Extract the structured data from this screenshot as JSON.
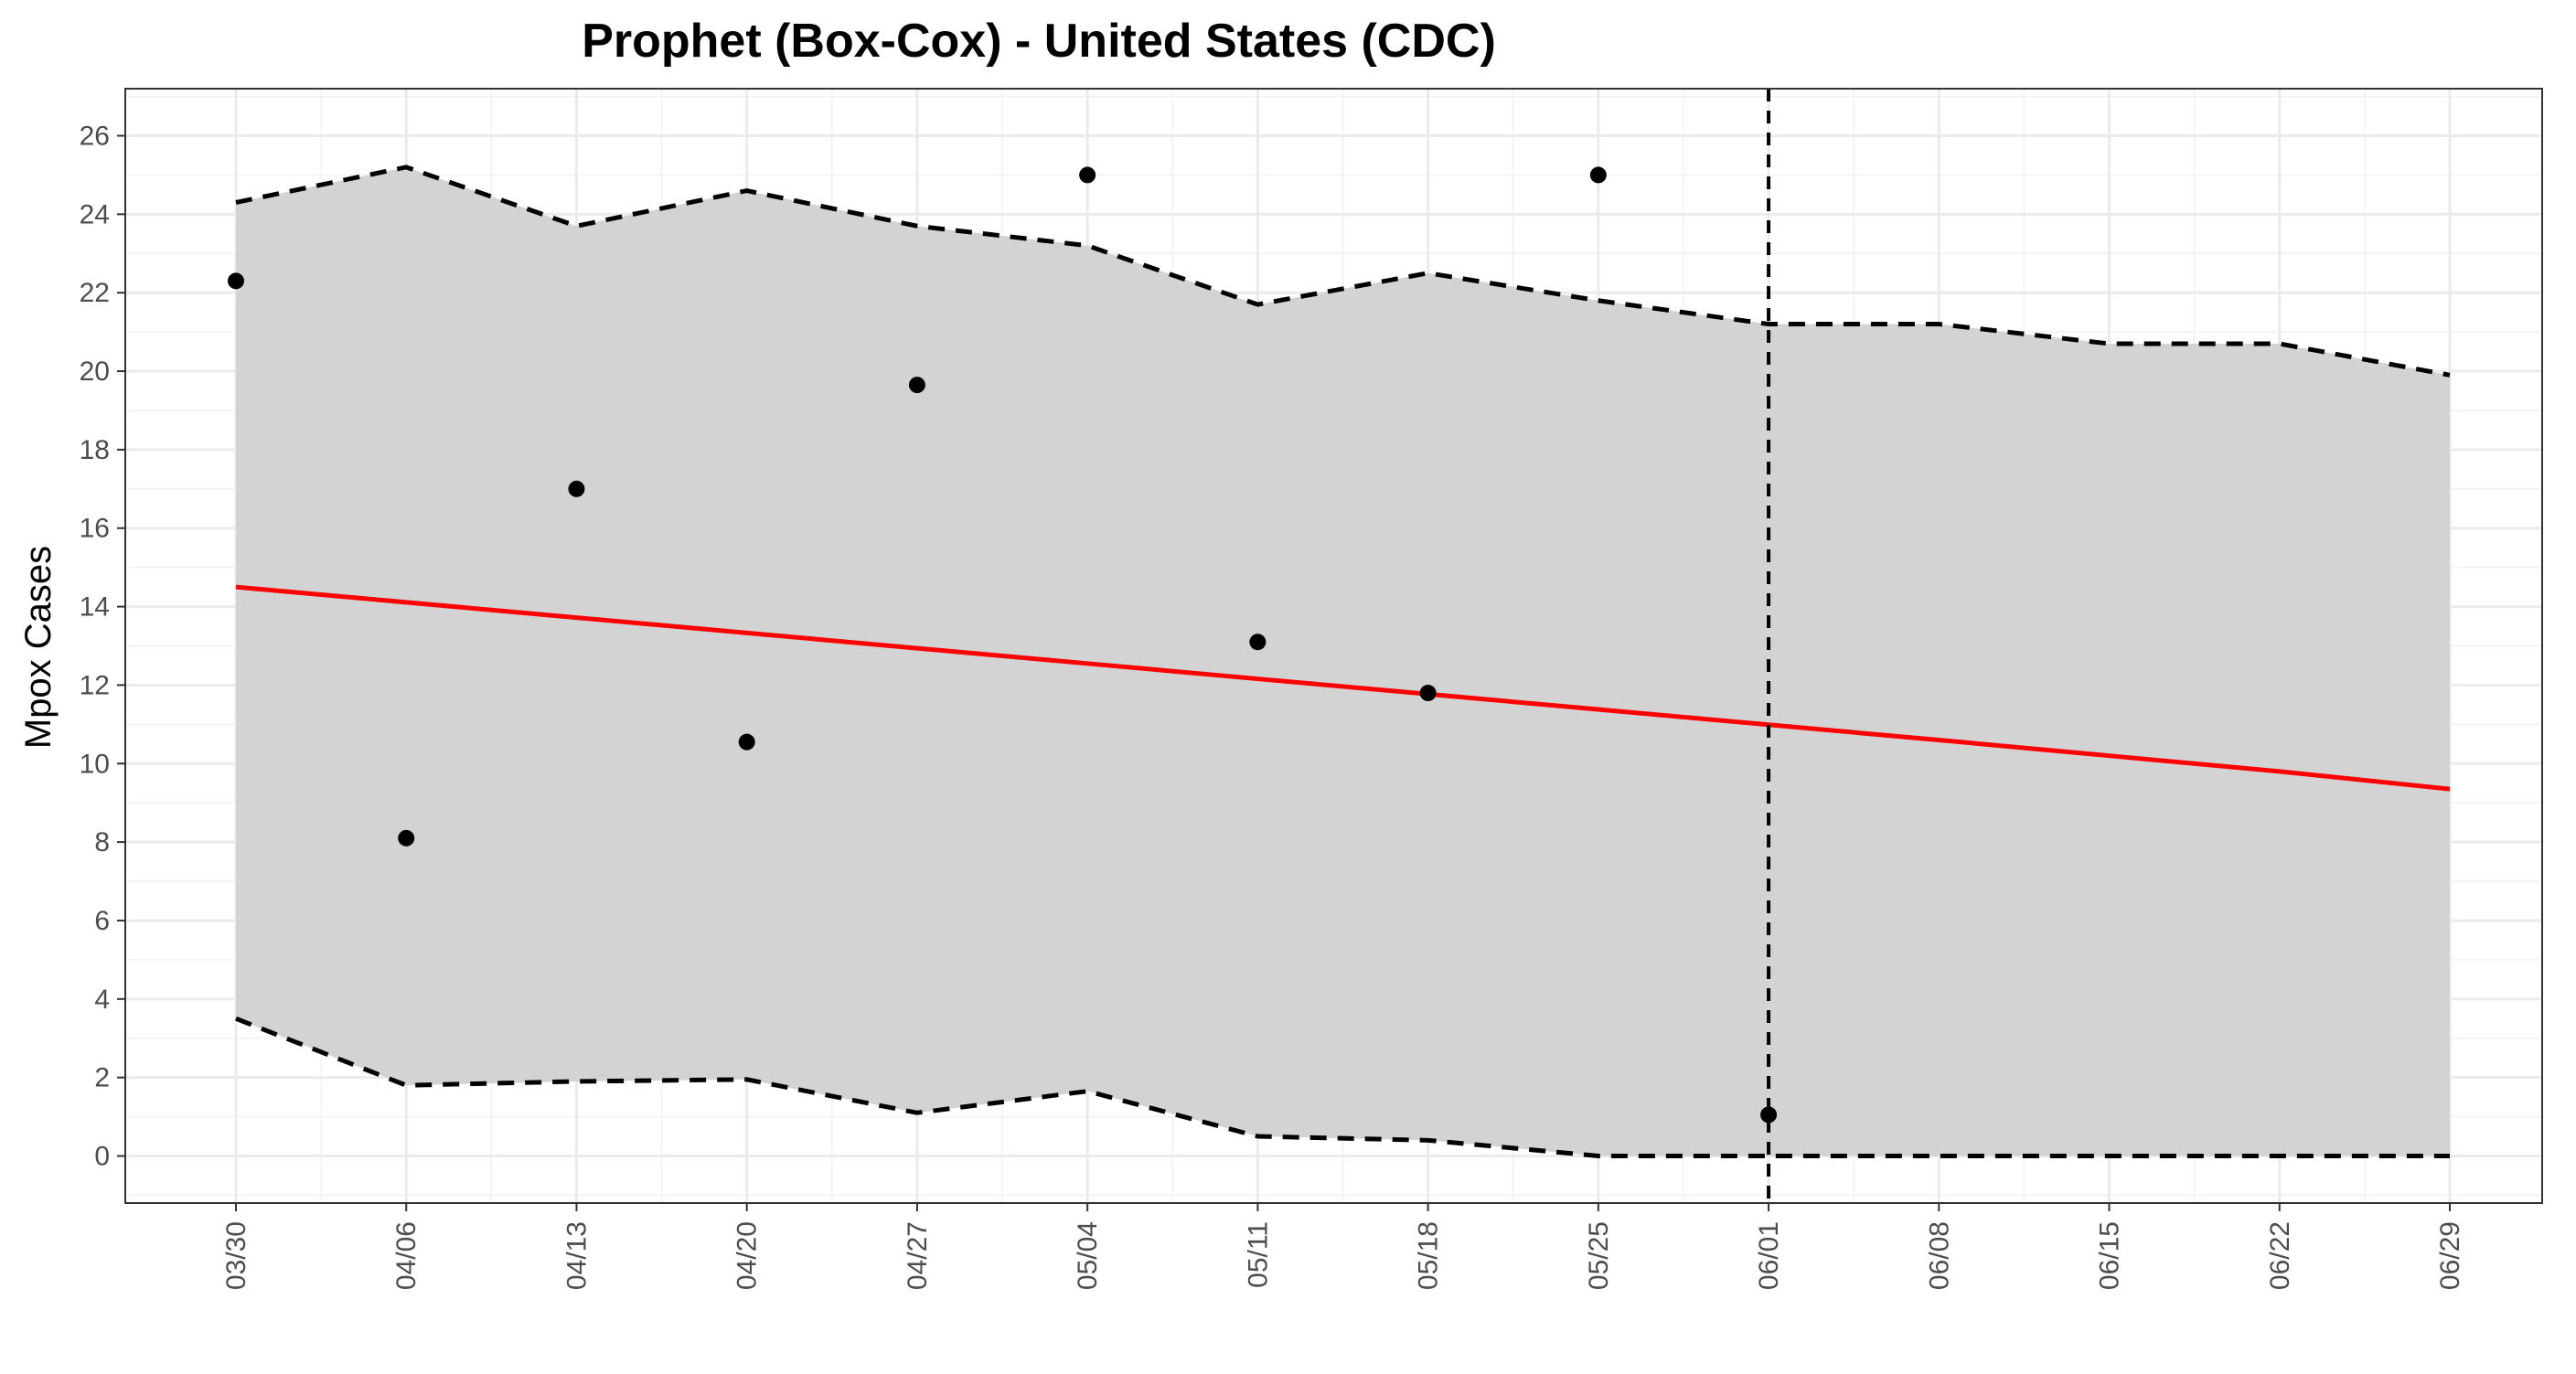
{
  "chart_data": {
    "type": "line",
    "title": "Prophet (Box-Cox) - United States (CDC)",
    "xlabel": "",
    "ylabel": "Mpox Cases",
    "x": [
      "03/30",
      "04/06",
      "04/13",
      "04/20",
      "04/27",
      "05/04",
      "05/11",
      "05/18",
      "05/25",
      "06/01",
      "06/08",
      "06/15",
      "06/22",
      "06/29"
    ],
    "ylim": [
      -1.2,
      27.2
    ],
    "yticks": [
      0,
      2,
      4,
      6,
      8,
      10,
      12,
      14,
      16,
      18,
      20,
      22,
      24,
      26
    ],
    "observed": [
      22.3,
      8.1,
      17.0,
      10.55,
      19.65,
      25.0,
      13.1,
      11.8,
      25.0,
      1.05,
      null,
      null,
      null,
      null
    ],
    "forecast": [
      14.5,
      14.11,
      13.72,
      13.33,
      12.94,
      12.55,
      12.16,
      11.77,
      11.38,
      10.99,
      10.6,
      10.2,
      9.8,
      9.35
    ],
    "upper": [
      24.3,
      25.2,
      23.7,
      24.6,
      23.7,
      23.2,
      21.7,
      22.5,
      21.8,
      21.2,
      21.2,
      20.7,
      20.7,
      19.9
    ],
    "lower": [
      3.5,
      1.8,
      1.9,
      1.95,
      1.1,
      1.65,
      0.5,
      0.4,
      0.0,
      0.0,
      0.0,
      0.0,
      0.0,
      0.0
    ],
    "forecast_start": "06/01",
    "grid": true,
    "colors": {
      "forecast": "#ff0000",
      "band": "#d3d3d3",
      "bounds": "#000000",
      "points": "#000000"
    }
  }
}
